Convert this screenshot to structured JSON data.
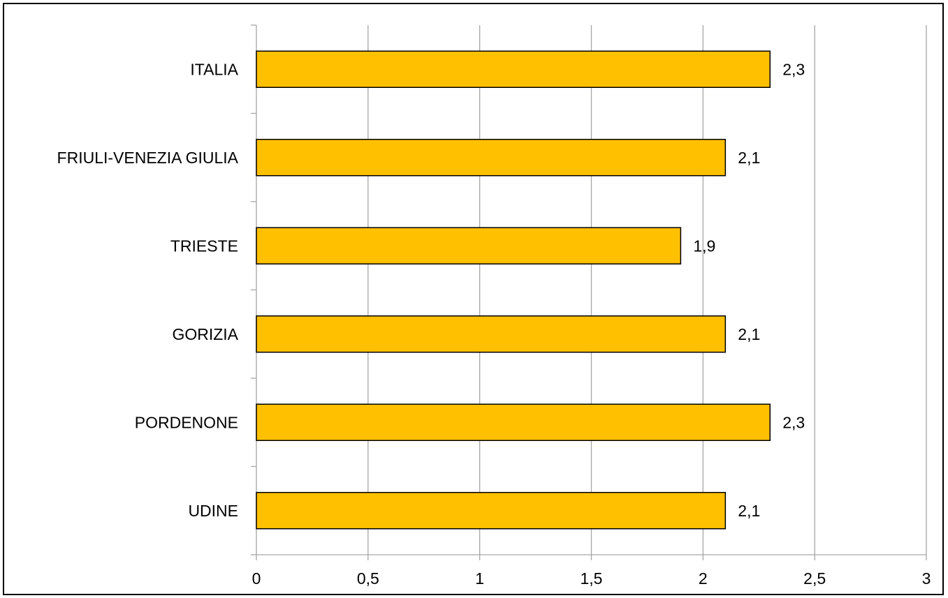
{
  "chart_data": {
    "type": "bar",
    "orientation": "horizontal",
    "title": "",
    "xlabel": "",
    "ylabel": "",
    "categories": [
      "ITALIA",
      "FRIULI-VENEZIA GIULIA",
      "TRIESTE",
      "GORIZIA",
      "PORDENONE",
      "UDINE"
    ],
    "values": [
      2.3,
      2.1,
      1.9,
      2.1,
      2.3,
      2.1
    ],
    "data_labels": [
      "2,3",
      "2,1",
      "1,9",
      "2,1",
      "2,3",
      "2,1"
    ],
    "xlim": [
      0,
      3
    ],
    "x_ticks": [
      0,
      0.5,
      1,
      1.5,
      2,
      2.5,
      3
    ],
    "x_tick_labels": [
      "0",
      "0,5",
      "1",
      "1,5",
      "2",
      "2,5",
      "3"
    ],
    "grid": "vertical",
    "legend": "none",
    "colors": {
      "bar": "#FFC000",
      "bar_border": "#000000",
      "grid": "#A6A6A6",
      "axis": "#A6A6A6"
    }
  }
}
